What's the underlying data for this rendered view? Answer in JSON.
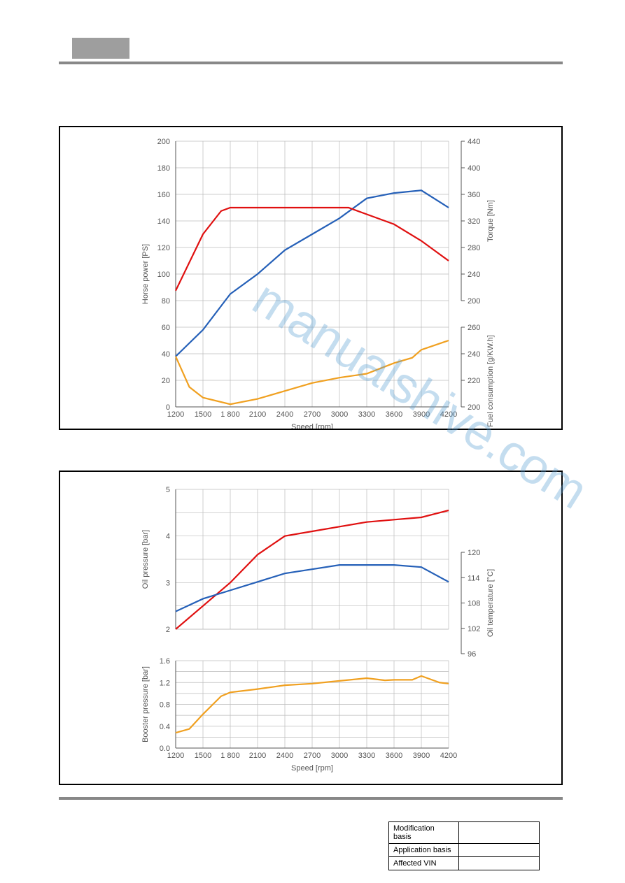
{
  "watermark_text": "manualshive.com",
  "footer_table": {
    "rows": [
      {
        "label": "Modification basis",
        "value": ""
      },
      {
        "label": "Application basis",
        "value": ""
      },
      {
        "label": "Affected VIN",
        "value": ""
      }
    ]
  },
  "chart1": {
    "type": "line",
    "x_axis": {
      "label": "Speed [rpm]",
      "ticks": [
        1200,
        1500,
        1800,
        2100,
        2400,
        2700,
        3000,
        3300,
        3600,
        3900,
        4200
      ],
      "tick_labels": [
        "1200",
        "1500",
        "1 800",
        "2100",
        "2400",
        "2700",
        "3000",
        "3300",
        "3600",
        "3900",
        "4200"
      ],
      "min": 1200,
      "max": 4200
    },
    "y_left": {
      "label": "Horse power [PS]",
      "min": 0,
      "max": 200,
      "ticks": [
        0,
        20,
        40,
        60,
        80,
        100,
        120,
        140,
        160,
        180,
        200
      ]
    },
    "y_right_top": {
      "label": "Torque [Nm]",
      "min": 200,
      "max": 440,
      "ticks": [
        200,
        240,
        280,
        320,
        360,
        400,
        440
      ]
    },
    "y_right_bottom": {
      "label": "Fuel consumption [g/KW.h]",
      "min": 200,
      "max": 260,
      "ticks": [
        200,
        220,
        240,
        260
      ]
    },
    "colors": {
      "hp": "#2560b8",
      "torque": "#e01010",
      "fuel": "#f0a020",
      "grid": "#bbbbbb",
      "axis_text": "#555555",
      "background": "#ffffff"
    },
    "line_width": 2.2,
    "series": {
      "hp": [
        {
          "x": 1200,
          "y": 38
        },
        {
          "x": 1500,
          "y": 58
        },
        {
          "x": 1800,
          "y": 85
        },
        {
          "x": 2100,
          "y": 100
        },
        {
          "x": 2400,
          "y": 118
        },
        {
          "x": 2700,
          "y": 130
        },
        {
          "x": 3000,
          "y": 142
        },
        {
          "x": 3300,
          "y": 157
        },
        {
          "x": 3600,
          "y": 161
        },
        {
          "x": 3900,
          "y": 163
        },
        {
          "x": 4200,
          "y": 150
        }
      ],
      "torque": [
        {
          "x": 1200,
          "y": 215
        },
        {
          "x": 1500,
          "y": 300
        },
        {
          "x": 1700,
          "y": 335
        },
        {
          "x": 1800,
          "y": 340
        },
        {
          "x": 3100,
          "y": 340
        },
        {
          "x": 3300,
          "y": 330
        },
        {
          "x": 3600,
          "y": 315
        },
        {
          "x": 3900,
          "y": 290
        },
        {
          "x": 4200,
          "y": 260
        }
      ],
      "fuel": [
        {
          "x": 1200,
          "y": 238
        },
        {
          "x": 1350,
          "y": 215
        },
        {
          "x": 1500,
          "y": 207
        },
        {
          "x": 1800,
          "y": 202
        },
        {
          "x": 2100,
          "y": 206
        },
        {
          "x": 2400,
          "y": 212
        },
        {
          "x": 2700,
          "y": 218
        },
        {
          "x": 3000,
          "y": 222
        },
        {
          "x": 3300,
          "y": 225
        },
        {
          "x": 3600,
          "y": 233
        },
        {
          "x": 3800,
          "y": 237
        },
        {
          "x": 3900,
          "y": 243
        },
        {
          "x": 4200,
          "y": 250
        }
      ]
    }
  },
  "chart2a": {
    "type": "line",
    "x_axis": {
      "min": 1200,
      "max": 4200
    },
    "y_left": {
      "label": "Oil pressure [bar]",
      "min": 2,
      "max": 5,
      "ticks": [
        2,
        3,
        4,
        5
      ]
    },
    "y_right": {
      "label": "Oil temperature [°C]",
      "min": 96,
      "max": 120,
      "ticks": [
        96,
        102,
        108,
        114,
        120
      ]
    },
    "colors": {
      "pressure": "#e01010",
      "temp": "#2560b8",
      "grid": "#bbbbbb"
    },
    "line_width": 2.2,
    "series": {
      "pressure": [
        {
          "x": 1200,
          "y": 2.0
        },
        {
          "x": 1500,
          "y": 2.5
        },
        {
          "x": 1800,
          "y": 3.0
        },
        {
          "x": 2100,
          "y": 3.6
        },
        {
          "x": 2400,
          "y": 4.0
        },
        {
          "x": 2700,
          "y": 4.1
        },
        {
          "x": 3000,
          "y": 4.2
        },
        {
          "x": 3300,
          "y": 4.3
        },
        {
          "x": 3600,
          "y": 4.35
        },
        {
          "x": 3900,
          "y": 4.4
        },
        {
          "x": 4200,
          "y": 4.55
        }
      ],
      "temp": [
        {
          "x": 1200,
          "y": 106
        },
        {
          "x": 1500,
          "y": 109
        },
        {
          "x": 1800,
          "y": 111
        },
        {
          "x": 2100,
          "y": 113
        },
        {
          "x": 2400,
          "y": 115
        },
        {
          "x": 2700,
          "y": 116
        },
        {
          "x": 3000,
          "y": 117
        },
        {
          "x": 3300,
          "y": 117
        },
        {
          "x": 3600,
          "y": 117
        },
        {
          "x": 3900,
          "y": 116.5
        },
        {
          "x": 4200,
          "y": 113
        }
      ]
    }
  },
  "chart2b": {
    "type": "line",
    "x_axis": {
      "label": "Speed [rpm]",
      "ticks": [
        1200,
        1500,
        1800,
        2100,
        2400,
        2700,
        3000,
        3300,
        3600,
        3900,
        4200
      ],
      "tick_labels": [
        "1200",
        "1500",
        "1 800",
        "2100",
        "2400",
        "2700",
        "3000",
        "3300",
        "3600",
        "3900",
        "4200"
      ],
      "min": 1200,
      "max": 4200
    },
    "y_left": {
      "label": "Booster pressure [bar]",
      "min": 0.0,
      "max": 1.6,
      "ticks": [
        0.0,
        0.4,
        0.8,
        1.2,
        1.6
      ],
      "tick_labels": [
        "0.0",
        "0.4",
        "0.8",
        "1.2",
        "1.6"
      ]
    },
    "colors": {
      "boost": "#f0a020",
      "grid": "#bbbbbb"
    },
    "line_width": 2.2,
    "series": {
      "boost": [
        {
          "x": 1200,
          "y": 0.28
        },
        {
          "x": 1350,
          "y": 0.35
        },
        {
          "x": 1500,
          "y": 0.62
        },
        {
          "x": 1700,
          "y": 0.95
        },
        {
          "x": 1800,
          "y": 1.02
        },
        {
          "x": 2100,
          "y": 1.08
        },
        {
          "x": 2400,
          "y": 1.15
        },
        {
          "x": 2700,
          "y": 1.18
        },
        {
          "x": 3000,
          "y": 1.23
        },
        {
          "x": 3300,
          "y": 1.28
        },
        {
          "x": 3500,
          "y": 1.24
        },
        {
          "x": 3600,
          "y": 1.25
        },
        {
          "x": 3800,
          "y": 1.25
        },
        {
          "x": 3900,
          "y": 1.32
        },
        {
          "x": 4100,
          "y": 1.2
        },
        {
          "x": 4200,
          "y": 1.18
        }
      ]
    }
  }
}
